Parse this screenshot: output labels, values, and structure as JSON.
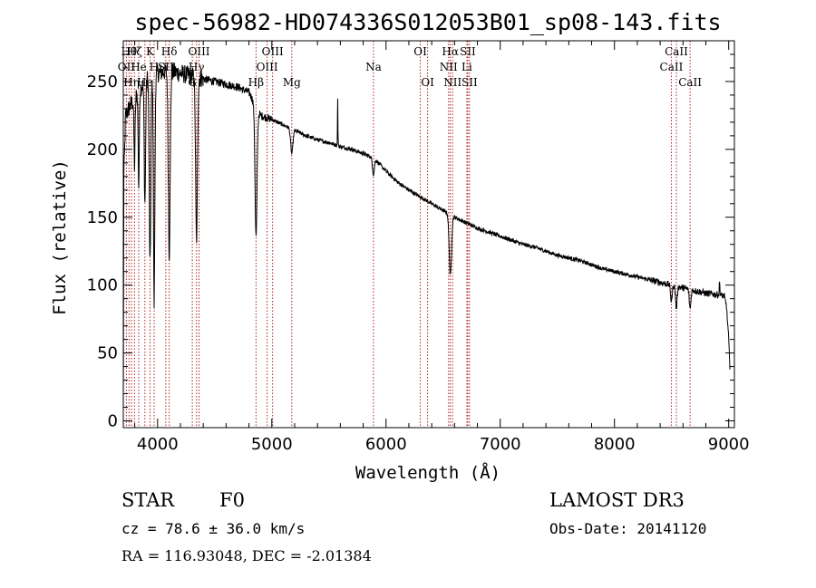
{
  "chart_data": {
    "type": "line",
    "title": "spec-56982-HD074336S012053B01_sp08-143.fits",
    "xlabel": "Wavelength (Å)",
    "ylabel": "Flux (relative)",
    "xlim": [
      3700,
      9050
    ],
    "ylim": [
      -5,
      280
    ],
    "x_ticks": [
      4000,
      5000,
      6000,
      7000,
      8000,
      9000
    ],
    "y_ticks": [
      0,
      50,
      100,
      150,
      200,
      250
    ],
    "series": [
      {
        "name": "spectrum",
        "continuum": [
          [
            3700,
            5
          ],
          [
            3705,
            180
          ],
          [
            3720,
            225
          ],
          [
            3760,
            232
          ],
          [
            3800,
            238
          ],
          [
            3850,
            245
          ],
          [
            3900,
            252
          ],
          [
            3950,
            255
          ],
          [
            4000,
            256
          ],
          [
            4050,
            257
          ],
          [
            4100,
            258
          ],
          [
            4200,
            256
          ],
          [
            4300,
            254
          ],
          [
            4400,
            252
          ],
          [
            4500,
            250
          ],
          [
            4600,
            248
          ],
          [
            4700,
            246
          ],
          [
            4800,
            242
          ],
          [
            4900,
            225
          ],
          [
            5000,
            222
          ],
          [
            5100,
            218
          ],
          [
            5200,
            214
          ],
          [
            5300,
            210
          ],
          [
            5400,
            207
          ],
          [
            5500,
            205
          ],
          [
            5600,
            202
          ],
          [
            5700,
            200
          ],
          [
            5800,
            197
          ],
          [
            5900,
            193
          ],
          [
            6000,
            184
          ],
          [
            6100,
            176
          ],
          [
            6200,
            170
          ],
          [
            6300,
            165
          ],
          [
            6400,
            160
          ],
          [
            6500,
            155
          ],
          [
            6600,
            150
          ],
          [
            6700,
            146
          ],
          [
            6800,
            142
          ],
          [
            6900,
            139
          ],
          [
            7000,
            136
          ],
          [
            7100,
            133
          ],
          [
            7200,
            130
          ],
          [
            7300,
            128
          ],
          [
            7400,
            125
          ],
          [
            7500,
            122
          ],
          [
            7600,
            120
          ],
          [
            7700,
            118
          ],
          [
            7800,
            115
          ],
          [
            7900,
            112
          ],
          [
            8000,
            110
          ],
          [
            8100,
            108
          ],
          [
            8200,
            106
          ],
          [
            8300,
            104
          ],
          [
            8400,
            102
          ],
          [
            8500,
            100
          ],
          [
            8600,
            98
          ],
          [
            8700,
            96
          ],
          [
            8800,
            94
          ],
          [
            8900,
            93
          ],
          [
            8960,
            92
          ],
          [
            8980,
            85
          ],
          [
            9000,
            60
          ],
          [
            9010,
            40
          ]
        ],
        "absorption_lines": [
          {
            "center": 3934,
            "depth": 140,
            "width": 7
          },
          {
            "center": 3970,
            "depth": 170,
            "width": 6
          },
          {
            "center": 3889,
            "depth": 90,
            "width": 6
          },
          {
            "center": 3835,
            "depth": 70,
            "width": 5
          },
          {
            "center": 3798,
            "depth": 50,
            "width": 5
          },
          {
            "center": 4102,
            "depth": 135,
            "width": 8
          },
          {
            "center": 4341,
            "depth": 120,
            "width": 8
          },
          {
            "center": 4862,
            "depth": 95,
            "width": 9
          },
          {
            "center": 5175,
            "depth": 18,
            "width": 10
          },
          {
            "center": 5890,
            "depth": 12,
            "width": 8
          },
          {
            "center": 6563,
            "depth": 45,
            "width": 10
          },
          {
            "center": 8498,
            "depth": 12,
            "width": 7
          },
          {
            "center": 8542,
            "depth": 16,
            "width": 7
          },
          {
            "center": 8662,
            "depth": 14,
            "width": 7
          }
        ],
        "emission_spikes": [
          {
            "center": 5577,
            "height": 35,
            "width": 2
          },
          {
            "center": 8920,
            "height": 10,
            "width": 3
          }
        ]
      }
    ],
    "line_markers": [
      {
        "x": 3727,
        "label": "OII",
        "row": 2
      },
      {
        "x": 3750,
        "label": "Hθ",
        "row": 1
      },
      {
        "x": 3771,
        "label": "Hη",
        "row": 3
      },
      {
        "x": 3798,
        "label": "Hζ",
        "row": 1
      },
      {
        "x": 3835,
        "label": "He",
        "row": 2
      },
      {
        "x": 3889,
        "label": "He",
        "row": 3
      },
      {
        "x": 3934,
        "label": "K",
        "row": 1
      },
      {
        "x": 3970,
        "label": "H",
        "row": 2
      },
      {
        "x": 4072,
        "label": "SII",
        "row": 2
      },
      {
        "x": 4102,
        "label": "Hδ",
        "row": 1
      },
      {
        "x": 4304,
        "label": "G",
        "row": 3
      },
      {
        "x": 4341,
        "label": "Hγ",
        "row": 2
      },
      {
        "x": 4363,
        "label": "OIII",
        "row": 1
      },
      {
        "x": 4862,
        "label": "Hβ",
        "row": 3
      },
      {
        "x": 4959,
        "label": "OIII",
        "row": 2
      },
      {
        "x": 5007,
        "label": "OIII",
        "row": 1
      },
      {
        "x": 5175,
        "label": "Mg",
        "row": 3
      },
      {
        "x": 5890,
        "label": "Na",
        "row": 2
      },
      {
        "x": 6300,
        "label": "OI",
        "row": 1
      },
      {
        "x": 6364,
        "label": "OI",
        "row": 3
      },
      {
        "x": 6548,
        "label": "NII",
        "row": 2
      },
      {
        "x": 6563,
        "label": "Hα",
        "row": 1
      },
      {
        "x": 6583,
        "label": "NII",
        "row": 3
      },
      {
        "x": 6708,
        "label": "Li",
        "row": 2
      },
      {
        "x": 6716,
        "label": "SII",
        "row": 1
      },
      {
        "x": 6731,
        "label": "SII",
        "row": 3
      },
      {
        "x": 8498,
        "label": "CaII",
        "row": 2
      },
      {
        "x": 8542,
        "label": "CaII",
        "row": 1
      },
      {
        "x": 8662,
        "label": "CaII",
        "row": 3
      }
    ],
    "marker_color": "#b22222",
    "line_color": "#000000"
  },
  "info": {
    "object_type": "STAR",
    "subclass": "F0",
    "survey": "LAMOST DR3",
    "cz": "cz = 78.6 ± 36.0 km/s",
    "obs_date": "Obs-Date: 20141120",
    "coords": "RA = 116.93048, DEC =  -2.01384"
  }
}
